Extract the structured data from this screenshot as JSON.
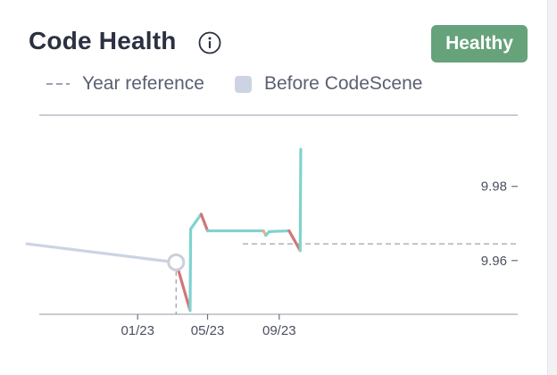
{
  "card": {
    "title": "Code Health",
    "status_badge": "Healthy"
  },
  "icons": {
    "info": "info-circle-icon"
  },
  "legend": {
    "year_reference": "Year reference",
    "before_codescene": "Before CodeScene"
  },
  "colors": {
    "badge": "#66a27a",
    "healthy": "#7fd3cf",
    "warning": "#e6b08a",
    "unhealthy": "#d27676",
    "before": "#ccd3e3",
    "reference": "#9da3b1"
  },
  "chart_data": {
    "type": "line",
    "x_tick_labels": [
      "01/23",
      "05/23",
      "09/23"
    ],
    "y_tick_labels": [
      "9.98",
      "9.96"
    ],
    "ylim": [
      9.9455,
      9.9992
    ],
    "reference_value": 9.9645,
    "start_marker_date": "2023-03-08",
    "series": [
      {
        "name": "Before CodeScene",
        "color": "#ccd3e3",
        "points": [
          [
            "2022-09-15",
            9.9645
          ],
          [
            "2023-03-08",
            9.9595
          ]
        ]
      },
      {
        "color_by_trend": true,
        "points": [
          [
            "2023-03-08",
            9.9595
          ],
          [
            "2023-04-01",
            9.9465
          ],
          [
            "2023-04-02",
            9.9685
          ],
          [
            "2023-04-20",
            9.9725
          ],
          [
            "2023-05-01",
            9.968
          ],
          [
            "2023-08-05",
            9.968
          ],
          [
            "2023-08-09",
            9.9668
          ],
          [
            "2023-08-15",
            9.9678
          ],
          [
            "2023-09-18",
            9.968
          ],
          [
            "2023-10-07",
            9.9627
          ],
          [
            "2023-10-08",
            9.99
          ]
        ]
      }
    ]
  }
}
